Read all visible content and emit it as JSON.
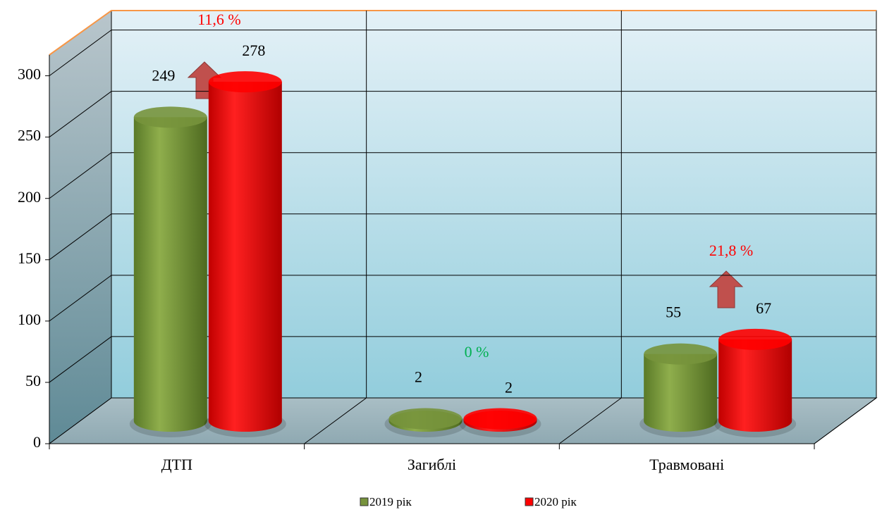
{
  "chart_data": {
    "type": "bar3d",
    "categories": [
      "ДТП",
      "Загиблі",
      "Травмовані"
    ],
    "series": [
      {
        "name": "2019 рік",
        "color": "#77933c",
        "values": [
          249,
          2,
          55
        ]
      },
      {
        "name": "2020 рік",
        "color": "#ff0000",
        "values": [
          278,
          2,
          67
        ]
      }
    ],
    "ylim": [
      0,
      317
    ],
    "yticks": [
      0,
      50,
      100,
      150,
      200,
      250,
      300
    ],
    "grid": true,
    "legend": "bottom",
    "annotations": [
      {
        "text": "11,6 %",
        "color": "#ff0000"
      },
      {
        "text": "0 %",
        "color": "#00b050"
      },
      {
        "text": "21,8 %",
        "color": "#ff0000"
      }
    ]
  }
}
